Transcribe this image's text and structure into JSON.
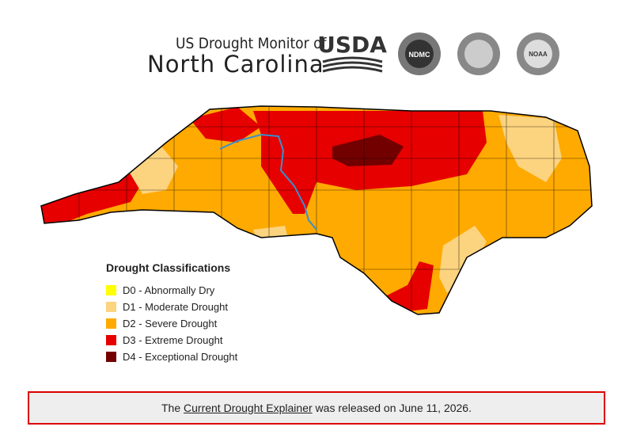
{
  "header": {
    "subtitle": "US Drought Monitor of",
    "title": "North Carolina"
  },
  "logos": [
    "USDA",
    "NDMC",
    "NOAA"
  ],
  "legend": {
    "title": "Drought Classifications",
    "items": [
      {
        "label": "D0 - Abnormally Dry",
        "color": "#ffff00"
      },
      {
        "label": "D1 - Moderate Drought",
        "color": "#fcd37f"
      },
      {
        "label": "D2 - Severe Drought",
        "color": "#ffaa00"
      },
      {
        "label": "D3 - Extreme Drought",
        "color": "#e60000"
      },
      {
        "label": "D4 - Exceptional Drought",
        "color": "#730000"
      }
    ]
  },
  "footer": {
    "before": "The",
    "link": "Current Drought Explainer",
    "after": "was released on June 11, 2026."
  }
}
